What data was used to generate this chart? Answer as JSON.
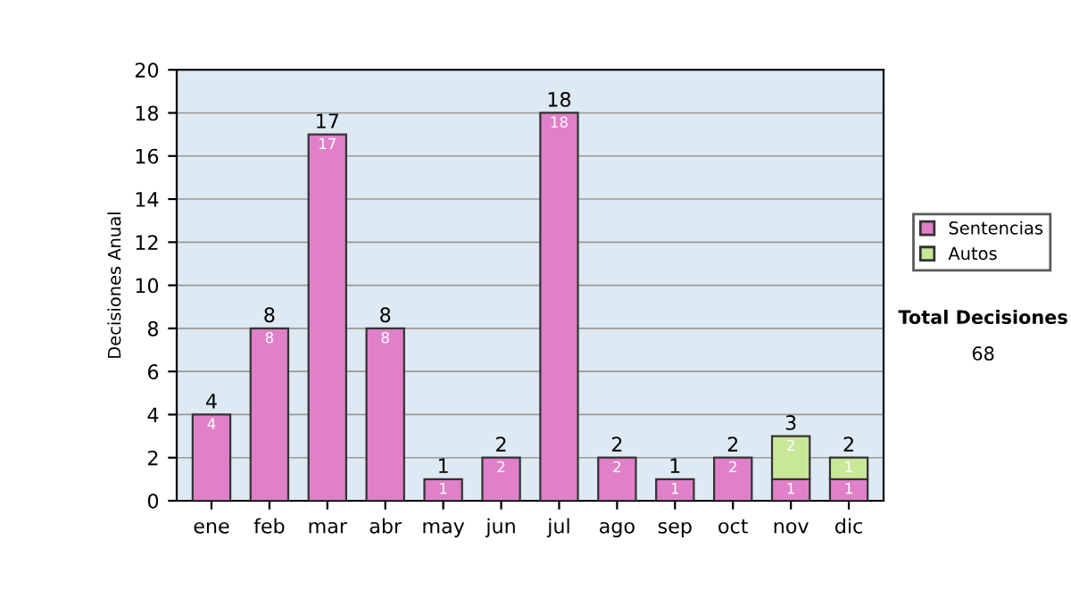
{
  "chart_data": {
    "type": "bar",
    "ylabel": "Decisiones Anual",
    "categories": [
      "ene",
      "feb",
      "mar",
      "abr",
      "may",
      "jun",
      "jul",
      "ago",
      "sep",
      "oct",
      "nov",
      "dic"
    ],
    "stacked": true,
    "series": [
      {
        "name": "Sentencias",
        "color": "#e080c8",
        "values": [
          4,
          8,
          17,
          8,
          1,
          2,
          18,
          2,
          1,
          2,
          1,
          1
        ]
      },
      {
        "name": "Autos",
        "color": "#c8e898",
        "values": [
          null,
          null,
          null,
          null,
          null,
          null,
          null,
          null,
          null,
          null,
          2,
          1
        ]
      }
    ],
    "data_labels": true,
    "totals": [
      "4",
      "8",
      "17",
      "8",
      "1",
      "2",
      "18",
      "2",
      "1",
      "2",
      "3",
      "2"
    ],
    "ylim": [
      0,
      20
    ],
    "yticks": [
      0,
      2,
      4,
      6,
      8,
      10,
      12,
      14,
      16,
      18,
      20
    ],
    "grid": "y",
    "legend": "right",
    "annotations": [
      "Total Decisiones",
      "68"
    ]
  }
}
